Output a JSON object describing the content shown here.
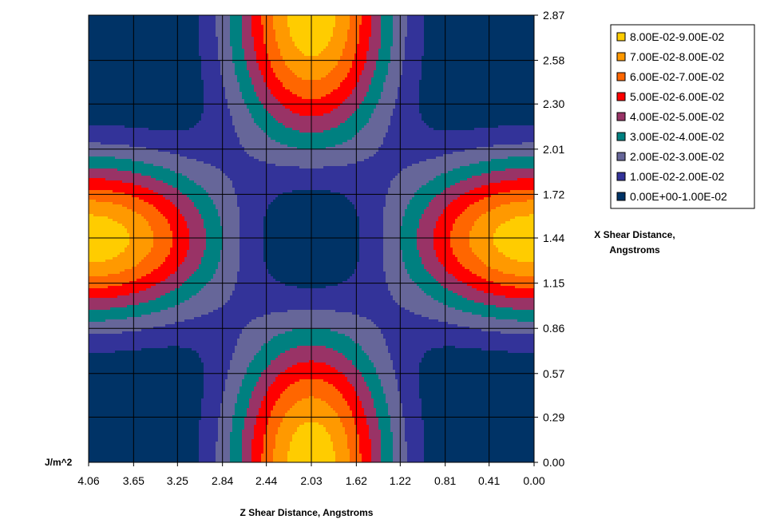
{
  "chart_data": {
    "type": "contour",
    "units_label": "J/m^2",
    "xlabel": "Z Shear Distance, Angstroms",
    "ylabel": "X Shear Distance, Angstroms",
    "x_ticks": [
      "4.06",
      "3.65",
      "3.25",
      "2.84",
      "2.44",
      "2.03",
      "1.62",
      "1.22",
      "0.81",
      "0.41",
      "0.00"
    ],
    "y_ticks": [
      "2.87",
      "2.58",
      "2.30",
      "2.01",
      "1.72",
      "1.44",
      "1.15",
      "0.86",
      "0.57",
      "0.29",
      "0.00"
    ],
    "x_range": [
      4.06,
      0.0
    ],
    "y_range": [
      0.0,
      2.87
    ],
    "grid": true,
    "legend_position": "top-right",
    "levels": [
      {
        "label": "8.00E-02-9.00E-02",
        "min": 0.08,
        "max": 0.09,
        "color": "#FFCC00"
      },
      {
        "label": "7.00E-02-8.00E-02",
        "min": 0.07,
        "max": 0.08,
        "color": "#FF9900"
      },
      {
        "label": "6.00E-02-7.00E-02",
        "min": 0.06,
        "max": 0.07,
        "color": "#FF6600"
      },
      {
        "label": "5.00E-02-6.00E-02",
        "min": 0.05,
        "max": 0.06,
        "color": "#FF0000"
      },
      {
        "label": "4.00E-02-5.00E-02",
        "min": 0.04,
        "max": 0.05,
        "color": "#993366"
      },
      {
        "label": "3.00E-02-4.00E-02",
        "min": 0.03,
        "max": 0.04,
        "color": "#008080"
      },
      {
        "label": "2.00E-02-3.00E-02",
        "min": 0.02,
        "max": 0.03,
        "color": "#666699"
      },
      {
        "label": "1.00E-02-2.00E-02",
        "min": 0.01,
        "max": 0.02,
        "color": "#333399"
      },
      {
        "label": "0.00E+00-1.00E-02",
        "min": 0.0,
        "max": 0.01,
        "color": "#003366"
      }
    ]
  }
}
